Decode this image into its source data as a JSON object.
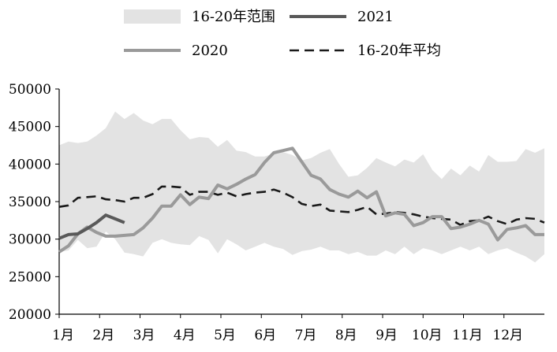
{
  "chart_data": {
    "type": "line",
    "title": "",
    "xlabel": "",
    "ylabel": "",
    "ylim": [
      20000,
      50000
    ],
    "yticks": [
      20000,
      25000,
      30000,
      35000,
      40000,
      45000,
      50000
    ],
    "xlim": [
      0,
      52
    ],
    "xtick_labels": [
      "1月",
      "2月",
      "3月",
      "4月",
      "5月",
      "6月",
      "7月",
      "8月",
      "9月",
      "10月",
      "11月",
      "12月"
    ],
    "grid": false,
    "legend": {
      "placement": "top",
      "entries": [
        {
          "label": "16-20年范围",
          "kind": "band",
          "color": "#e3e3e3"
        },
        {
          "label": "2021",
          "kind": "line",
          "color": "#595959"
        },
        {
          "label": "2020",
          "kind": "line",
          "color": "#9a9a9a"
        },
        {
          "label": "16-20年平均",
          "kind": "dashed",
          "color": "#1a1a1a"
        }
      ]
    },
    "band": {
      "name": "16-20年范围",
      "color": "#e3e3e3",
      "x": [
        0,
        1,
        2,
        3,
        4,
        5,
        6,
        7,
        8,
        9,
        10,
        11,
        12,
        13,
        14,
        15,
        16,
        17,
        18,
        19,
        20,
        21,
        22,
        23,
        24,
        25,
        26,
        27,
        28,
        29,
        30,
        31,
        32,
        33,
        34,
        35,
        36,
        37,
        38,
        39,
        40,
        41,
        42,
        43,
        44,
        45,
        46,
        47,
        48,
        49,
        50,
        51,
        52
      ],
      "upper": [
        42500,
        43000,
        42800,
        43000,
        43800,
        44800,
        47000,
        46000,
        46800,
        45800,
        45300,
        46000,
        46000,
        44500,
        43300,
        43600,
        43500,
        42300,
        43200,
        41800,
        41600,
        41000,
        41000,
        41400,
        41600,
        41200,
        40500,
        40800,
        41500,
        42000,
        40000,
        38300,
        38500,
        39500,
        40800,
        40200,
        39700,
        40600,
        40200,
        41300,
        39200,
        38000,
        39400,
        38500,
        39800,
        39000,
        41200,
        40300,
        40300,
        40400,
        42000,
        41500,
        42100
      ],
      "lower": [
        28300,
        28500,
        29900,
        28800,
        29000,
        31000,
        30000,
        28200,
        28000,
        27700,
        29500,
        30000,
        29500,
        29300,
        29200,
        30400,
        29900,
        28100,
        30000,
        29300,
        28500,
        29000,
        29500,
        29000,
        28700,
        27900,
        28400,
        28600,
        29000,
        28500,
        28500,
        28000,
        28300,
        27800,
        27800,
        28500,
        28000,
        29000,
        28000,
        28800,
        28500,
        28000,
        28500,
        29000,
        28500,
        29000,
        28000,
        28500,
        28800,
        28200,
        27700,
        26900,
        28000
      ]
    },
    "series": [
      {
        "name": "2021",
        "color": "#595959",
        "x": [
          0,
          1,
          2,
          3,
          4,
          5,
          6,
          7
        ],
        "values": [
          30100,
          30600,
          30700,
          31400,
          32200,
          33200,
          32700,
          32200
        ]
      },
      {
        "name": "2020",
        "color": "#9a9a9a",
        "x": [
          0,
          1,
          2,
          3,
          4,
          5,
          6,
          7,
          8,
          9,
          10,
          11,
          12,
          13,
          14,
          15,
          16,
          17,
          18,
          19,
          20,
          21,
          22,
          23,
          24,
          25,
          26,
          27,
          28,
          29,
          30,
          31,
          32,
          33,
          34,
          35,
          36,
          37,
          38,
          39,
          40,
          41,
          42,
          43,
          44,
          45,
          46,
          47,
          48,
          49,
          50,
          51,
          52
        ],
        "values": [
          28300,
          29100,
          30700,
          31600,
          30900,
          30400,
          30400,
          30500,
          30600,
          31500,
          32800,
          34400,
          34400,
          35900,
          34600,
          35600,
          35400,
          37200,
          36700,
          37300,
          38000,
          38600,
          40200,
          41500,
          41800,
          42100,
          40300,
          38500,
          38000,
          36600,
          36000,
          35600,
          36400,
          35500,
          36300,
          33100,
          33500,
          33300,
          31800,
          32200,
          33000,
          33000,
          31400,
          31600,
          32000,
          32500,
          32000,
          29900,
          31300,
          31500,
          31800,
          30600,
          30600
        ]
      },
      {
        "name": "16-20年平均",
        "color": "#1a1a1a",
        "dashed": true,
        "x": [
          0,
          1,
          2,
          3,
          4,
          5,
          6,
          7,
          8,
          9,
          10,
          11,
          12,
          13,
          14,
          15,
          16,
          17,
          18,
          19,
          20,
          21,
          22,
          23,
          24,
          25,
          26,
          27,
          28,
          29,
          30,
          31,
          32,
          33,
          34,
          35,
          36,
          37,
          38,
          39,
          40,
          41,
          42,
          43,
          44,
          45,
          46,
          47,
          48,
          49,
          50,
          51,
          52
        ],
        "values": [
          34300,
          34500,
          35500,
          35600,
          35700,
          35300,
          35200,
          35000,
          35500,
          35500,
          36000,
          37000,
          37000,
          36900,
          35900,
          36300,
          36300,
          35900,
          36200,
          35700,
          36000,
          36200,
          36300,
          36600,
          36200,
          35600,
          34700,
          34400,
          34600,
          33800,
          33700,
          33600,
          33900,
          34300,
          33300,
          33400,
          33600,
          33500,
          33300,
          33000,
          32800,
          32700,
          32600,
          31900,
          32400,
          32500,
          33000,
          32400,
          32000,
          32600,
          32800,
          32700,
          32200
        ]
      }
    ]
  }
}
